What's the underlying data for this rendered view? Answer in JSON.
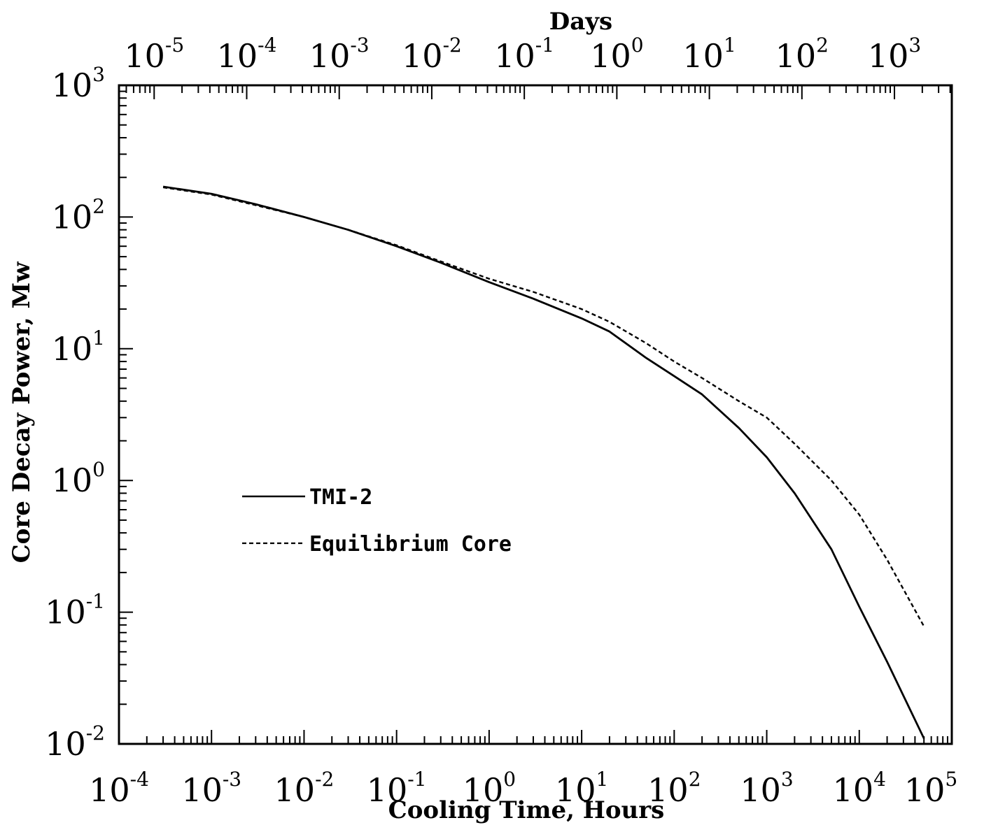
{
  "chart_data": {
    "type": "line",
    "title": "",
    "xlabel": "Cooling Time, Hours",
    "ylabel": "Core Decay Power, Mw",
    "x2label": "Days",
    "xscale": "log",
    "yscale": "log",
    "xlim": [
      0.0001,
      100000
    ],
    "ylim": [
      0.01,
      1000
    ],
    "x2lim": [
      4.167e-06,
      4167
    ],
    "grid": false,
    "legend_position": "center-left",
    "xticks": [
      {
        "base": "10",
        "exp": "-4",
        "value": 0.0001
      },
      {
        "base": "10",
        "exp": "-3",
        "value": 0.001
      },
      {
        "base": "10",
        "exp": "-2",
        "value": 0.01
      },
      {
        "base": "10",
        "exp": "-1",
        "value": 0.1
      },
      {
        "base": "10",
        "exp": "0",
        "value": 1
      },
      {
        "base": "10",
        "exp": "1",
        "value": 10
      },
      {
        "base": "10",
        "exp": "2",
        "value": 100
      },
      {
        "base": "10",
        "exp": "3",
        "value": 1000
      },
      {
        "base": "10",
        "exp": "4",
        "value": 10000
      },
      {
        "base": "10",
        "exp": "5",
        "value": 100000
      }
    ],
    "x2ticks": [
      {
        "base": "10",
        "exp": "-5",
        "value": 1e-05
      },
      {
        "base": "10",
        "exp": "-4",
        "value": 0.0001
      },
      {
        "base": "10",
        "exp": "-3",
        "value": 0.001
      },
      {
        "base": "10",
        "exp": "-2",
        "value": 0.01
      },
      {
        "base": "10",
        "exp": "-1",
        "value": 0.1
      },
      {
        "base": "10",
        "exp": "0",
        "value": 1
      },
      {
        "base": "10",
        "exp": "1",
        "value": 10
      },
      {
        "base": "10",
        "exp": "2",
        "value": 100
      },
      {
        "base": "10",
        "exp": "3",
        "value": 1000
      }
    ],
    "yticks": [
      {
        "base": "10",
        "exp": "-2",
        "value": 0.01
      },
      {
        "base": "10",
        "exp": "-1",
        "value": 0.1
      },
      {
        "base": "10",
        "exp": "0",
        "value": 1
      },
      {
        "base": "10",
        "exp": "1",
        "value": 10
      },
      {
        "base": "10",
        "exp": "2",
        "value": 100
      },
      {
        "base": "10",
        "exp": "3",
        "value": 1000
      }
    ],
    "series": [
      {
        "name": "TMI-2",
        "style": "solid",
        "x": [
          0.0003,
          0.001,
          0.003,
          0.01,
          0.03,
          0.1,
          0.3,
          1,
          3,
          10,
          20,
          50,
          100,
          200,
          500,
          1000,
          2000,
          5000,
          10000,
          20000,
          50000
        ],
        "y": [
          170,
          150,
          125,
          100,
          80,
          60,
          45,
          32,
          24,
          17,
          13.5,
          8.5,
          6.2,
          4.5,
          2.5,
          1.5,
          0.8,
          0.3,
          0.11,
          0.042,
          0.011
        ]
      },
      {
        "name": "Equilibrium Core",
        "style": "dashed",
        "x": [
          0.0003,
          0.001,
          0.003,
          0.01,
          0.03,
          0.1,
          0.3,
          1,
          3,
          10,
          20,
          50,
          100,
          200,
          500,
          1000,
          2000,
          5000,
          10000,
          20000,
          50000
        ],
        "y": [
          168,
          148,
          123,
          100,
          80,
          61,
          46,
          34,
          27,
          20,
          16,
          11,
          8,
          6,
          4,
          3,
          1.9,
          1,
          0.55,
          0.25,
          0.078
        ]
      }
    ]
  },
  "legend": {
    "items": [
      {
        "label": "TMI-2",
        "style": "solid"
      },
      {
        "label": "Equilibrium Core",
        "style": "dashed"
      }
    ]
  }
}
